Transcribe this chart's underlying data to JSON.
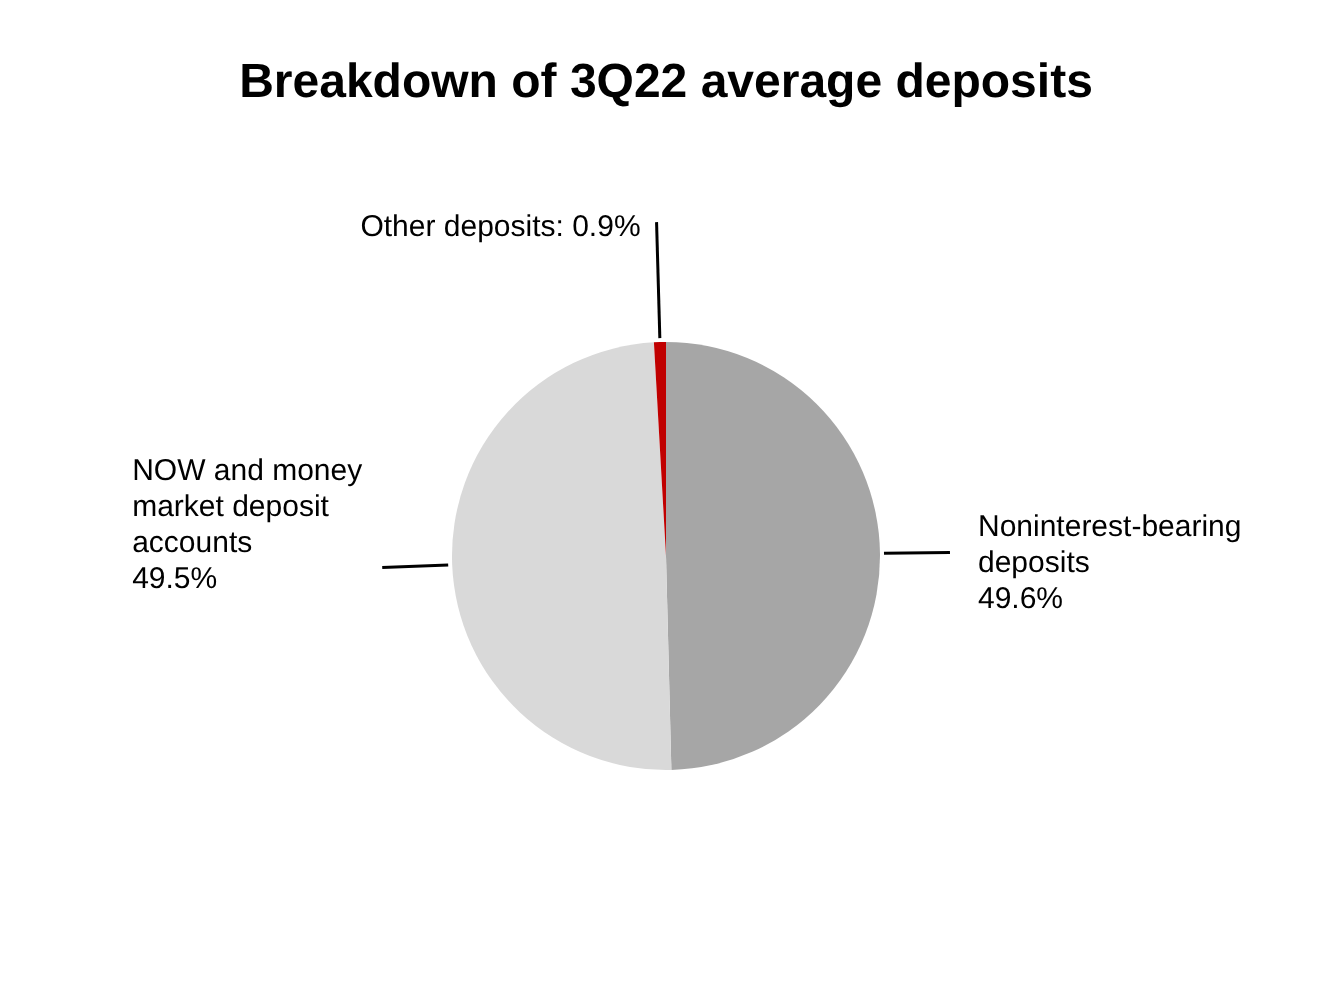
{
  "chart_data": {
    "type": "pie",
    "title": "Breakdown of 3Q22 average deposits",
    "categories": [
      "Noninterest-bearing deposits",
      "NOW and money market deposit accounts",
      "Other deposits"
    ],
    "values": [
      49.6,
      49.5,
      0.9
    ],
    "colors": [
      "#a6a6a6",
      "#d9d9d9",
      "#c00000"
    ],
    "value_labels": [
      "49.6%",
      "49.5%",
      "0.9%"
    ],
    "legend": false
  }
}
